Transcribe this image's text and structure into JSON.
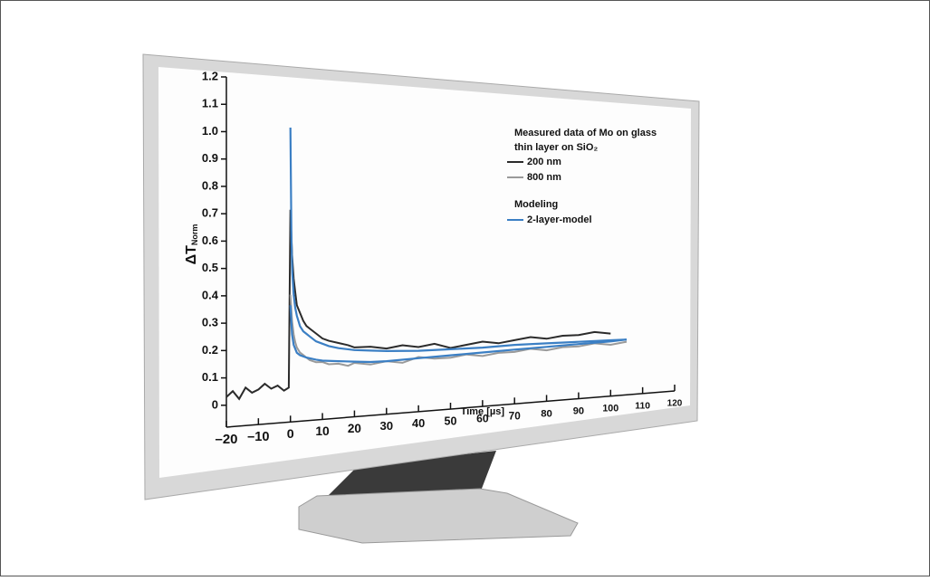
{
  "chart_data": {
    "type": "line",
    "x_label": "Time [µs]",
    "y_label": "ΔT",
    "y_label_subscript": "Norm",
    "legend_title": "Measured data of Mo on glass",
    "legend_subtitle": "thin layer  on SiO₂",
    "model_legend_title": "Modeling",
    "xlim": [
      -20,
      120
    ],
    "ylim": [
      -0.08,
      1.2
    ],
    "xticks": [
      {
        "value": -20,
        "label": "–20"
      },
      {
        "value": -10,
        "label": "–10"
      },
      0,
      10,
      20,
      30,
      40,
      50,
      60,
      70,
      80,
      90,
      100,
      110,
      120
    ],
    "yticks": [
      0,
      0.1,
      0.2,
      0.3,
      0.4,
      0.5,
      0.6,
      0.7,
      0.8,
      0.9,
      {
        "value": 1,
        "label": "1.0"
      },
      1.1,
      1.2
    ],
    "series": [
      {
        "name": "200 nm",
        "color": "#2b2b2b",
        "x": [
          -20,
          -18,
          -16,
          -14,
          -12,
          -10,
          -8,
          -6,
          -4,
          -2,
          -0.5,
          0,
          0.5,
          1,
          1.5,
          2,
          3,
          4,
          5,
          6,
          8,
          10,
          12,
          15,
          18,
          20,
          25,
          30,
          35,
          40,
          45,
          50,
          55,
          60,
          65,
          70,
          75,
          80,
          85,
          90,
          95,
          100
        ],
        "values": [
          0.03,
          0.05,
          0.02,
          0.06,
          0.04,
          0.05,
          0.07,
          0.05,
          0.06,
          0.04,
          0.05,
          0.72,
          0.55,
          0.46,
          0.41,
          0.36,
          0.33,
          0.3,
          0.28,
          0.27,
          0.25,
          0.23,
          0.22,
          0.21,
          0.2,
          0.19,
          0.19,
          0.18,
          0.19,
          0.18,
          0.19,
          0.17,
          0.18,
          0.19,
          0.18,
          0.19,
          0.2,
          0.19,
          0.2,
          0.2,
          0.21,
          0.2
        ]
      },
      {
        "name": "800 nm",
        "color": "#9a9a9a",
        "x": [
          0,
          0.5,
          1,
          1.5,
          2,
          3,
          4,
          5,
          6,
          8,
          10,
          12,
          15,
          18,
          20,
          25,
          30,
          35,
          40,
          45,
          50,
          55,
          60,
          65,
          70,
          75,
          80,
          85,
          90,
          95,
          100,
          105
        ],
        "values": [
          0.4,
          0.3,
          0.25,
          0.22,
          0.2,
          0.18,
          0.17,
          0.16,
          0.15,
          0.14,
          0.14,
          0.13,
          0.13,
          0.12,
          0.13,
          0.12,
          0.13,
          0.12,
          0.14,
          0.13,
          0.13,
          0.14,
          0.13,
          0.14,
          0.14,
          0.15,
          0.14,
          0.15,
          0.15,
          0.16,
          0.15,
          0.16
        ]
      },
      {
        "name": "2-layer-model",
        "color": "#3b7fc4",
        "x": [
          0,
          0.3,
          0.6,
          1,
          1.5,
          2,
          3,
          4,
          5,
          6,
          8,
          10,
          12,
          15,
          20,
          25,
          30,
          40,
          50,
          60,
          70,
          80,
          90,
          100,
          105
        ],
        "values": [
          1.03,
          0.62,
          0.48,
          0.4,
          0.35,
          0.32,
          0.28,
          0.26,
          0.25,
          0.24,
          0.22,
          0.21,
          0.2,
          0.19,
          0.18,
          0.175,
          0.17,
          0.165,
          0.165,
          0.165,
          0.17,
          0.17,
          0.17,
          0.17,
          0.17
        ]
      },
      {
        "name": "2-layer-model",
        "color": "#3b7fc4",
        "x": [
          0,
          0.5,
          1,
          2,
          3,
          5,
          8,
          10,
          15,
          20,
          25,
          30,
          40,
          50,
          60,
          70,
          80,
          90,
          100,
          105
        ],
        "values": [
          0.36,
          0.25,
          0.21,
          0.18,
          0.17,
          0.16,
          0.15,
          0.145,
          0.14,
          0.135,
          0.13,
          0.13,
          0.135,
          0.14,
          0.145,
          0.15,
          0.155,
          0.16,
          0.165,
          0.17
        ]
      }
    ]
  }
}
